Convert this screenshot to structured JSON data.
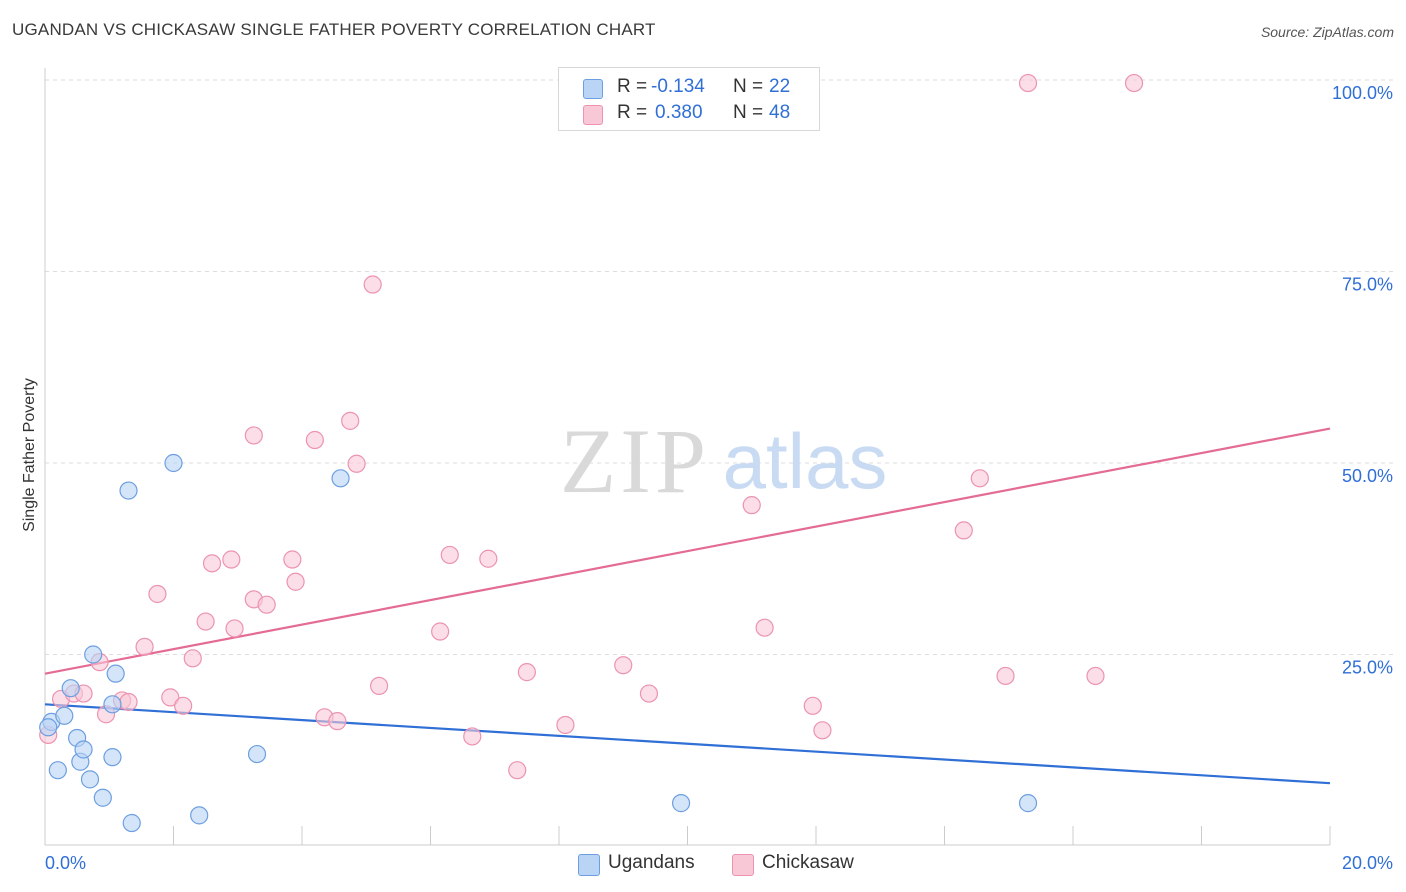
{
  "title": "UGANDAN VS CHICKASAW SINGLE FATHER POVERTY CORRELATION CHART",
  "source": "Source: ZipAtlas.com",
  "watermark": {
    "zip": "ZIP",
    "atlas": "atlas"
  },
  "legend_top": {
    "rows": [
      {
        "r_label": "R =",
        "r_value": "-0.134",
        "n_label": "N =",
        "n_value": "22"
      },
      {
        "r_label": "R =",
        "r_value": "0.380",
        "n_label": "N =",
        "n_value": "48"
      }
    ]
  },
  "legend_bottom": {
    "items": [
      "Ugandans",
      "Chickasaw"
    ]
  },
  "colors": {
    "ugandans_fill": "#b9d4f5",
    "ugandans_stroke": "#6d9fe0",
    "ugandans_line": "#2f6fd6",
    "chickasaw_fill": "#f8c8d7",
    "chickasaw_stroke": "#ec93b0",
    "chickasaw_line": "#e46b93",
    "tick_text": "#2f6fd6",
    "grid": "#dddddd"
  },
  "chart_data": {
    "type": "scatter",
    "title": "UGANDAN VS CHICKASAW SINGLE FATHER POVERTY CORRELATION CHART",
    "xlabel": "",
    "ylabel": "Single Father Poverty",
    "xlim": [
      0,
      20
    ],
    "ylim": [
      0,
      100
    ],
    "x_tick_labels": [
      "0.0%",
      "20.0%"
    ],
    "y_ticks": [
      25,
      50,
      75,
      100
    ],
    "y_tick_labels": [
      "25.0%",
      "50.0%",
      "75.0%",
      "100.0%"
    ],
    "series": [
      {
        "name": "Ugandans",
        "r": -0.134,
        "n": 22,
        "trend": {
          "x0": 0,
          "y0": 18.5,
          "x1": 20,
          "y1": 8.2
        },
        "points": [
          [
            0.1,
            16.2
          ],
          [
            0.3,
            17.0
          ],
          [
            0.4,
            20.6
          ],
          [
            0.5,
            14.1
          ],
          [
            0.55,
            11.0
          ],
          [
            0.6,
            12.6
          ],
          [
            0.2,
            9.9
          ],
          [
            0.7,
            8.7
          ],
          [
            0.9,
            6.3
          ],
          [
            0.75,
            25.0
          ],
          [
            1.05,
            18.5
          ],
          [
            1.1,
            22.5
          ],
          [
            1.05,
            11.6
          ],
          [
            1.3,
            46.4
          ],
          [
            1.35,
            3.0
          ],
          [
            2.0,
            50.0
          ],
          [
            2.4,
            4.0
          ],
          [
            3.3,
            12.0
          ],
          [
            4.6,
            48.0
          ],
          [
            9.9,
            5.6
          ],
          [
            15.3,
            5.6
          ],
          [
            0.05,
            15.5
          ]
        ]
      },
      {
        "name": "Chickasaw",
        "r": 0.38,
        "n": 48,
        "trend": {
          "x0": 0,
          "y0": 22.5,
          "x1": 20,
          "y1": 54.5
        },
        "points": [
          [
            0.05,
            14.5
          ],
          [
            0.25,
            19.2
          ],
          [
            0.45,
            19.9
          ],
          [
            0.6,
            19.9
          ],
          [
            0.85,
            24.0
          ],
          [
            0.95,
            17.2
          ],
          [
            1.2,
            19.0
          ],
          [
            1.3,
            18.8
          ],
          [
            1.55,
            26.0
          ],
          [
            1.75,
            32.9
          ],
          [
            1.95,
            19.4
          ],
          [
            2.15,
            18.3
          ],
          [
            2.3,
            24.5
          ],
          [
            2.5,
            29.3
          ],
          [
            2.6,
            36.9
          ],
          [
            2.9,
            37.4
          ],
          [
            2.95,
            28.4
          ],
          [
            3.25,
            53.6
          ],
          [
            3.25,
            32.2
          ],
          [
            3.45,
            31.5
          ],
          [
            3.85,
            37.4
          ],
          [
            3.9,
            34.5
          ],
          [
            4.2,
            53.0
          ],
          [
            4.35,
            16.8
          ],
          [
            4.55,
            16.3
          ],
          [
            4.75,
            55.5
          ],
          [
            4.85,
            49.9
          ],
          [
            5.1,
            73.3
          ],
          [
            5.2,
            20.9
          ],
          [
            6.15,
            28.0
          ],
          [
            6.3,
            38.0
          ],
          [
            6.65,
            14.3
          ],
          [
            6.9,
            37.5
          ],
          [
            7.35,
            9.9
          ],
          [
            7.5,
            22.7
          ],
          [
            8.1,
            15.8
          ],
          [
            9.0,
            23.6
          ],
          [
            9.4,
            19.9
          ],
          [
            11.0,
            44.5
          ],
          [
            11.2,
            28.5
          ],
          [
            11.95,
            18.3
          ],
          [
            12.1,
            15.1
          ],
          [
            14.3,
            41.2
          ],
          [
            14.55,
            48.0
          ],
          [
            14.95,
            22.2
          ],
          [
            16.35,
            22.2
          ],
          [
            15.3,
            99.6
          ],
          [
            16.95,
            99.6
          ]
        ]
      }
    ]
  }
}
